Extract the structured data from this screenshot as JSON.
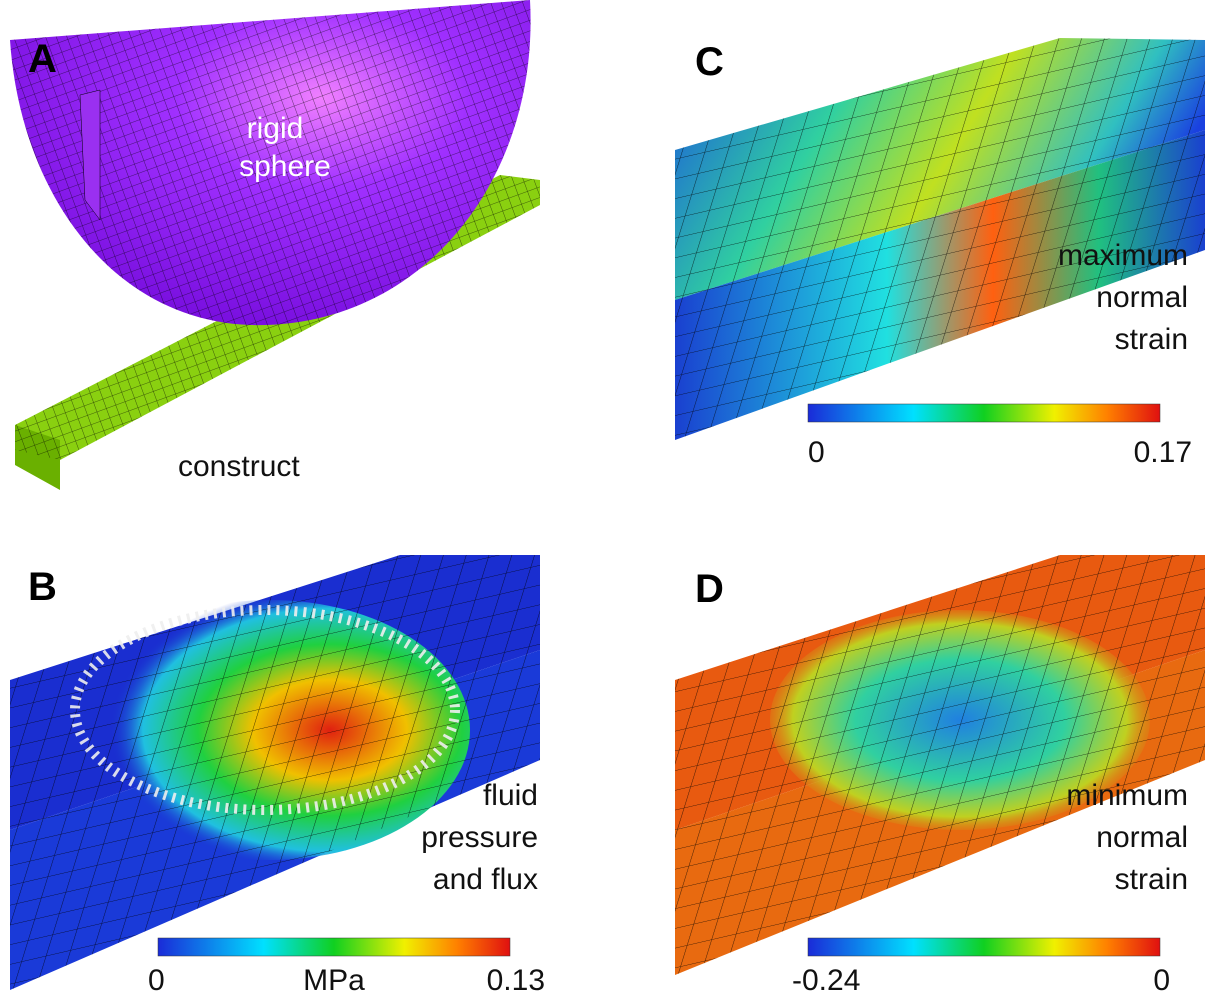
{
  "panel_a": {
    "label": "A",
    "sphere_label": [
      "rigid",
      "sphere"
    ],
    "construct_label": "construct"
  },
  "panel_b": {
    "label": "B",
    "caption": [
      "fluid",
      "pressure",
      "and flux"
    ],
    "colorbar": {
      "min": 0,
      "unit": "MPa",
      "max": 0.13
    }
  },
  "panel_c": {
    "label": "C",
    "caption": [
      "maximum",
      "normal",
      "strain"
    ],
    "colorbar": {
      "min": 0,
      "max": 0.17
    }
  },
  "panel_d": {
    "label": "D",
    "caption": [
      "minimum",
      "normal",
      "strain"
    ],
    "colorbar": {
      "min": -0.24,
      "max": 0
    }
  }
}
